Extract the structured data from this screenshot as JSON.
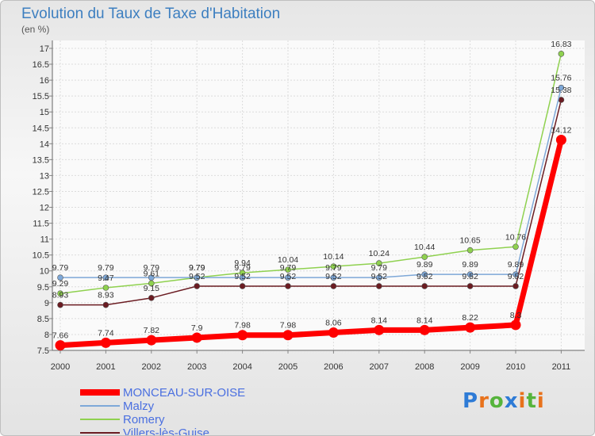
{
  "title": "Evolution du Taux de Taxe d'Habitation",
  "unit": "(en %)",
  "chart_data": {
    "type": "line",
    "title": "Evolution du Taux de Taxe d'Habitation",
    "ylabel": "(en %)",
    "xlabel": "",
    "x": [
      "2000",
      "2001",
      "2002",
      "2003",
      "2004",
      "2005",
      "2006",
      "2007",
      "2008",
      "2009",
      "2010",
      "2011"
    ],
    "ylim": [
      7.5,
      17
    ],
    "yticks": [
      7.5,
      8,
      8.5,
      9,
      9.5,
      10,
      10.5,
      11,
      11.5,
      12,
      12.5,
      13,
      13.5,
      14,
      14.5,
      15,
      15.5,
      16,
      16.5,
      17
    ],
    "ytick_labels": [
      "7.5",
      "8",
      "8.5",
      "9",
      "9.5",
      "10",
      "10.5",
      "11",
      "11.5",
      "12",
      "12.5",
      "13",
      "13.5",
      "14",
      "14.5",
      "15",
      "15.5",
      "16",
      "16.5",
      "17"
    ],
    "grid": true,
    "legend_position": "bottom-left",
    "series": [
      {
        "name": "Villers-lès-Guise",
        "color": "#6b1c22",
        "width": 1.5,
        "values": [
          8.93,
          8.93,
          9.15,
          9.52,
          9.52,
          9.52,
          9.52,
          9.52,
          9.52,
          9.52,
          9.52,
          15.38
        ],
        "labels": [
          "8.93",
          "8.93",
          "9.15",
          "9.52",
          "9.52",
          "9.52",
          "9.52",
          "9.52",
          "9.52",
          "9.52",
          "9.52",
          "15.38"
        ]
      },
      {
        "name": "Romery",
        "color": "#8fd14f",
        "width": 1.5,
        "values": [
          9.29,
          9.47,
          9.61,
          9.79,
          9.94,
          10.04,
          10.14,
          10.24,
          10.44,
          10.65,
          10.76,
          16.83
        ],
        "labels": [
          "9.29",
          "9.47",
          "9.61",
          "9.79",
          "9.94",
          "10.04",
          "10.14",
          "10.24",
          "10.44",
          "10.65",
          "10.76",
          "16.83"
        ]
      },
      {
        "name": "Malzy",
        "color": "#7ea8d8",
        "width": 1.5,
        "values": [
          9.79,
          9.79,
          9.79,
          9.79,
          9.79,
          9.79,
          9.79,
          9.79,
          9.89,
          9.89,
          9.89,
          15.76
        ],
        "labels": [
          "9.79",
          "9.79",
          "9.79",
          "9.79",
          "9.79",
          "9.79",
          "9.79",
          "9.79",
          "9.89",
          "9.89",
          "9.89",
          "15.76"
        ]
      },
      {
        "name": "MONCEAU-SUR-OISE",
        "color": "#ff0000",
        "width": 7,
        "values": [
          7.66,
          7.74,
          7.82,
          7.9,
          7.98,
          7.98,
          8.06,
          8.14,
          8.14,
          8.22,
          8.3,
          14.12
        ],
        "labels": [
          "7.66",
          "7.74",
          "7.82",
          "7.9",
          "7.98",
          "7.98",
          "8.06",
          "8.14",
          "8.14",
          "8.22",
          "8.3",
          "14.12"
        ]
      }
    ]
  },
  "legend": [
    {
      "label": "MONCEAU-SUR-OISE",
      "color": "#ff0000",
      "thickness": 8
    },
    {
      "label": "Malzy",
      "color": "#7ea8d8",
      "thickness": 2
    },
    {
      "label": "Romery",
      "color": "#8fd14f",
      "thickness": 2
    },
    {
      "label": "Villers-lès-Guise",
      "color": "#6b1c22",
      "thickness": 2
    }
  ],
  "logo": {
    "letters": [
      "P",
      "r",
      "o",
      "x",
      "i",
      "t",
      "i"
    ],
    "colors": [
      "#2e7bd6",
      "#e8721c",
      "#56b43c",
      "#2e7bd6",
      "#e8721c",
      "#56b43c",
      "#e8721c"
    ]
  }
}
